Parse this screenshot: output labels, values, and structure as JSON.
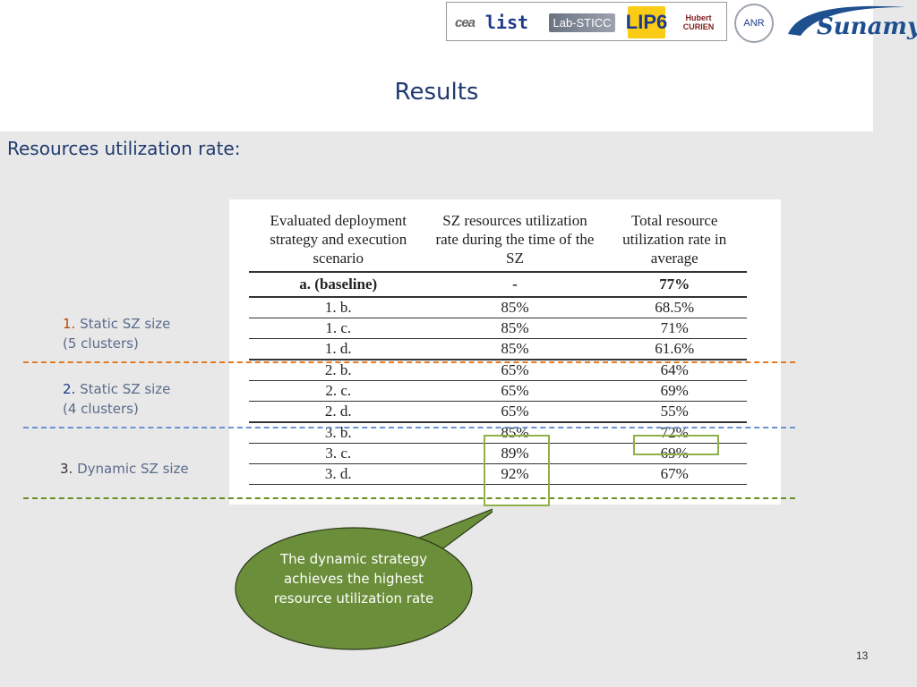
{
  "header": {
    "logos": {
      "cea": "cea",
      "list": "list",
      "labsticc": "Lab-STICC",
      "lip6": "LIP6",
      "curien_line1": "Hubert",
      "curien_line2": "CURIEN",
      "anr": "ANR",
      "sunamy": "Sunamy"
    }
  },
  "slide": {
    "title": "Results",
    "subtitle": "Resources utilization rate:",
    "page_number": "13"
  },
  "table": {
    "headers": [
      "Evaluated deployment strategy and execution scenario",
      "SZ resources utilization rate during the time of the SZ",
      "Total resource utilization rate in average"
    ],
    "rows": [
      [
        "a. (baseline)",
        "-",
        "77%"
      ],
      [
        "1. b.",
        "85%",
        "68.5%"
      ],
      [
        "1. c.",
        "85%",
        "71%"
      ],
      [
        "1. d.",
        "85%",
        "61.6%"
      ],
      [
        "2. b.",
        "65%",
        "64%"
      ],
      [
        "2. c.",
        "65%",
        "69%"
      ],
      [
        "2. d.",
        "65%",
        "55%"
      ],
      [
        "3. b.",
        "85%",
        "72%"
      ],
      [
        "3. c.",
        "89%",
        "69%"
      ],
      [
        "3. d.",
        "92%",
        "67%"
      ]
    ]
  },
  "groups": {
    "g1_num": "1.",
    "g1_text": "Static SZ size",
    "g1_sub": "(5 clusters)",
    "g2_num": "2.",
    "g2_text": "Static SZ size",
    "g2_sub": "(4 clusters)",
    "g3_num": "3.",
    "g3_text": "Dynamic SZ size"
  },
  "callout": {
    "text": "The dynamic strategy achieves the highest resource utilization rate"
  },
  "colors": {
    "title": "#1e3a6e",
    "callout_fill": "#6b8e3a",
    "group1": "#e07b24",
    "group2": "#6a93d1",
    "group3": "#6b8e23"
  }
}
